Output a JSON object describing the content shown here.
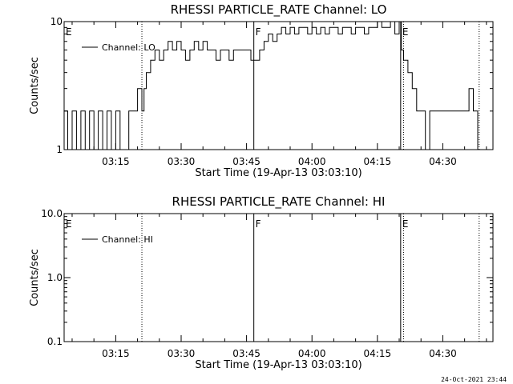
{
  "chart_data": [
    {
      "type": "line",
      "title": "RHESSI PARTICLE_RATE Channel: LO",
      "xlabel": "Start Time (19-Apr-13 03:03:10)",
      "ylabel": "Counts/sec",
      "yscale": "log",
      "ylim": [
        1,
        10
      ],
      "xlim": [
        "03:03:10",
        "04:41:30"
      ],
      "ytick_labels": [
        "1",
        "10"
      ],
      "xtick_labels": [
        "03:15",
        "03:30",
        "03:45",
        "04:00",
        "04:15",
        "04:30"
      ],
      "legend": {
        "entries": [
          "Channel: LO"
        ],
        "placement": "top-left"
      },
      "markers": [
        {
          "label": "E",
          "time": "03:03:10",
          "style": "solid"
        },
        {
          "label": "",
          "time": "03:21:00",
          "style": "dotted"
        },
        {
          "label": "F",
          "time": "03:46:40",
          "style": "solid"
        },
        {
          "label": "E",
          "time": "04:20:20",
          "style": "solid"
        },
        {
          "label": "",
          "time": "04:21:00",
          "style": "dotted"
        },
        {
          "label": "",
          "time": "04:38:20",
          "style": "dotted"
        }
      ],
      "series": [
        {
          "name": "Channel: LO",
          "x": [
            "03:03:10",
            "03:04:00",
            "03:05:00",
            "03:06:00",
            "03:07:00",
            "03:08:00",
            "03:09:00",
            "03:10:00",
            "03:11:00",
            "03:12:00",
            "03:13:00",
            "03:14:00",
            "03:15:00",
            "03:16:00",
            "03:17:00",
            "03:18:00",
            "03:19:00",
            "03:20:00",
            "03:21:00",
            "03:21:30",
            "03:22:00",
            "03:23:00",
            "03:24:00",
            "03:25:00",
            "03:26:00",
            "03:27:00",
            "03:28:00",
            "03:29:00",
            "03:30:00",
            "03:31:00",
            "03:32:00",
            "03:33:00",
            "03:34:00",
            "03:35:00",
            "03:36:00",
            "03:37:00",
            "03:38:00",
            "03:39:00",
            "03:40:00",
            "03:41:00",
            "03:42:00",
            "03:43:00",
            "03:44:00",
            "03:45:00",
            "03:46:00",
            "03:47:00",
            "03:48:00",
            "03:49:00",
            "03:50:00",
            "03:51:00",
            "03:52:00",
            "03:53:00",
            "03:54:00",
            "03:55:00",
            "03:56:00",
            "03:57:00",
            "03:58:00",
            "03:59:00",
            "04:00:00",
            "04:01:00",
            "04:02:00",
            "04:03:00",
            "04:04:00",
            "04:05:00",
            "04:06:00",
            "04:07:00",
            "04:08:00",
            "04:09:00",
            "04:10:00",
            "04:11:00",
            "04:12:00",
            "04:13:00",
            "04:14:00",
            "04:15:00",
            "04:16:00",
            "04:17:00",
            "04:18:00",
            "04:19:00",
            "04:20:00",
            "04:20:30",
            "04:21:00",
            "04:22:00",
            "04:23:00",
            "04:24:00",
            "04:25:00",
            "04:26:00",
            "04:27:00",
            "04:28:00",
            "04:29:00",
            "04:30:00",
            "04:31:00",
            "04:32:00",
            "04:33:00",
            "04:34:00",
            "04:35:00",
            "04:36:00",
            "04:37:00",
            "04:38:00"
          ],
          "y": [
            2,
            1,
            2,
            1,
            2,
            1,
            2,
            1,
            2,
            1,
            2,
            1,
            2,
            1,
            1,
            2,
            2,
            3,
            2,
            3,
            4,
            5,
            6,
            5,
            6,
            7,
            6,
            7,
            6,
            5,
            6,
            7,
            6,
            7,
            6,
            6,
            5,
            6,
            6,
            5,
            6,
            6,
            6,
            6,
            5,
            5,
            6,
            7,
            8,
            7,
            8,
            9,
            8,
            9,
            8,
            9,
            9,
            8,
            9,
            8,
            9,
            8,
            9,
            9,
            8,
            9,
            9,
            8,
            9,
            9,
            8,
            9,
            9,
            10,
            9,
            9,
            10,
            8,
            10,
            6,
            5,
            4,
            3,
            2,
            2,
            1,
            2,
            2,
            2,
            2,
            2,
            2,
            2,
            2,
            2,
            3,
            2,
            1
          ]
        }
      ]
    },
    {
      "type": "line",
      "title": "RHESSI PARTICLE_RATE Channel: HI",
      "xlabel": "Start Time (19-Apr-13 03:03:10)",
      "ylabel": "Counts/sec",
      "yscale": "log",
      "ylim": [
        0.1,
        10
      ],
      "xlim": [
        "03:03:10",
        "04:41:30"
      ],
      "ytick_labels": [
        "0.1",
        "1.0",
        "10.0"
      ],
      "xtick_labels": [
        "03:15",
        "03:30",
        "03:45",
        "04:00",
        "04:15",
        "04:30"
      ],
      "legend": {
        "entries": [
          "Channel: HI"
        ],
        "placement": "top-left"
      },
      "markers": [
        {
          "label": "E",
          "time": "03:03:10",
          "style": "solid"
        },
        {
          "label": "",
          "time": "03:21:00",
          "style": "dotted"
        },
        {
          "label": "F",
          "time": "03:46:40",
          "style": "solid"
        },
        {
          "label": "E",
          "time": "04:20:20",
          "style": "solid"
        },
        {
          "label": "",
          "time": "04:21:00",
          "style": "dotted"
        },
        {
          "label": "",
          "time": "04:38:20",
          "style": "dotted"
        }
      ],
      "series": [
        {
          "name": "Channel: HI",
          "x": [],
          "y": []
        }
      ]
    }
  ],
  "footer": {
    "timestamp": "24-Oct-2021 23:44"
  }
}
